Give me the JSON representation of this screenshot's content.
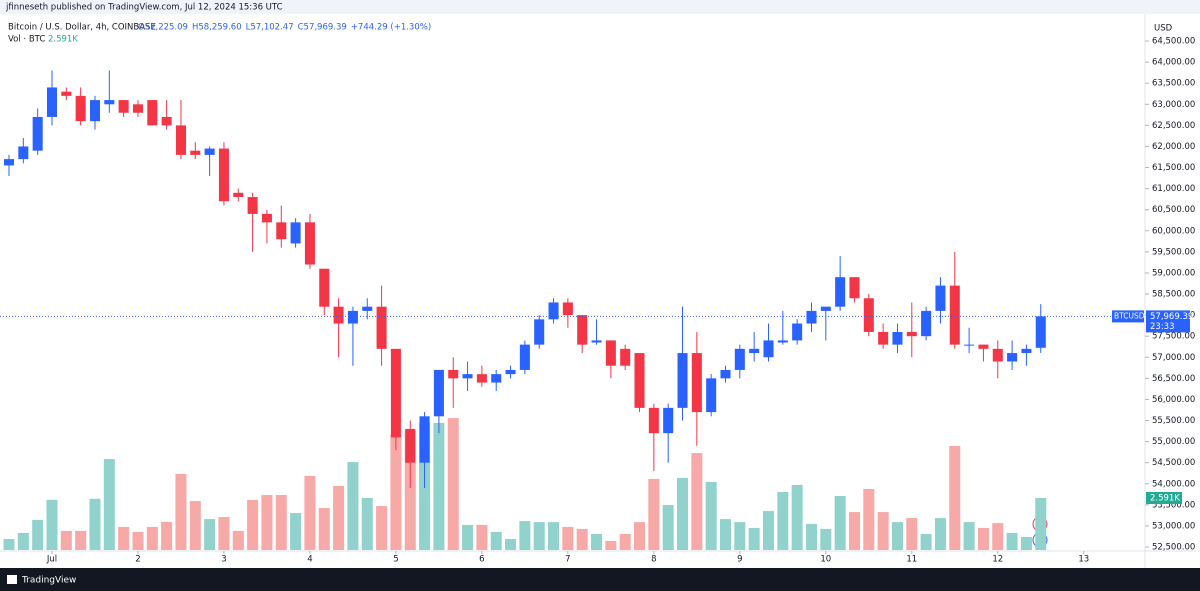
{
  "chart_data": {
    "type": "candlestick",
    "credit": "jfinneseth published on TradingView.com, Jul 12, 2024 15:36 UTC",
    "title": "Bitcoin / U.S. Dollar, 4h, COINBASE",
    "ohlc_header": [
      "O57,225.09",
      "H58,259.60",
      "L57,102.47",
      "C57,969.39",
      "+744.29 (+1.30%)"
    ],
    "volume_title": "Vol · BTC",
    "volume_header": "2.591K",
    "currency": "USD",
    "symbol": "BTCUSD",
    "last_price_label": "57,969.39",
    "countdown": "23:33",
    "volume_tag": "2.591K",
    "footer": "TradingView",
    "up_color": "#2962ff",
    "down_color": "#f23645",
    "volume_up_color": "#92d2cc",
    "volume_down_color": "#f7a9a7",
    "categories": [
      null,
      null,
      null,
      null,
      null,
      null,
      null,
      null,
      null,
      null,
      null,
      null,
      null,
      null,
      null,
      null,
      null,
      null,
      null,
      null,
      null,
      null,
      null,
      null,
      null,
      null,
      null,
      null,
      null,
      null,
      null,
      null,
      null,
      null,
      null,
      null,
      null,
      null,
      null,
      null,
      null,
      null,
      null,
      null,
      null,
      null,
      null,
      null,
      null,
      null,
      null,
      null,
      null,
      null,
      null,
      null,
      null,
      null,
      null,
      null,
      null,
      null,
      null,
      null,
      null,
      null,
      null,
      null,
      null,
      null,
      null,
      null,
      null
    ],
    "open": [
      61550,
      61700,
      61900,
      62700,
      63300,
      63200,
      62600,
      63000,
      63100,
      63000,
      63100,
      62700,
      62500,
      61900,
      61800,
      61950,
      60900,
      60800,
      60400,
      60200,
      59700,
      60200,
      59100,
      58200,
      57800,
      58100,
      58200,
      57200,
      55300,
      54500,
      55600,
      56700,
      56500,
      56600,
      56400,
      56600,
      56700,
      57300,
      57900,
      58300,
      58000,
      57350,
      57400,
      57200,
      57100,
      55800,
      55200,
      55800,
      57100,
      55700,
      56500,
      56700,
      57100,
      57000,
      57350,
      57400,
      57800,
      58100,
      58200,
      58900,
      58400,
      57600,
      57300,
      57600,
      57500,
      58100,
      58700,
      57300,
      57300,
      57200,
      56900,
      57100,
      57225.09
    ],
    "high": [
      61800,
      62200,
      62900,
      63800,
      63400,
      63400,
      63200,
      63800,
      63100,
      63100,
      63100,
      63100,
      63100,
      62100,
      62000,
      62100,
      61000,
      60900,
      60500,
      60600,
      60300,
      60400,
      59100,
      58400,
      58200,
      58400,
      58700,
      57200,
      55500,
      55700,
      56700,
      57000,
      56900,
      56800,
      56700,
      56800,
      57400,
      58000,
      58400,
      58400,
      58000,
      57900,
      57400,
      57300,
      57100,
      55900,
      55900,
      58200,
      57600,
      56600,
      56800,
      57300,
      57600,
      57800,
      58100,
      57900,
      58300,
      58200,
      59400,
      58900,
      58500,
      57800,
      57800,
      58300,
      58200,
      58900,
      59500,
      57700,
      57300,
      57400,
      57400,
      57300,
      58259.6
    ],
    "low": [
      61300,
      61600,
      61800,
      62500,
      63100,
      62500,
      62400,
      62800,
      62700,
      62700,
      62500,
      62400,
      61700,
      61700,
      61300,
      60600,
      60700,
      59500,
      59700,
      59600,
      59600,
      59100,
      58000,
      57000,
      56800,
      57900,
      56800,
      54800,
      53900,
      53900,
      55200,
      55800,
      56200,
      56300,
      56200,
      56500,
      56600,
      57200,
      57800,
      57700,
      57100,
      57300,
      56500,
      56700,
      55700,
      54300,
      54500,
      55500,
      54900,
      55600,
      56400,
      56500,
      56900,
      56900,
      57300,
      57300,
      57600,
      57400,
      58100,
      58300,
      57500,
      57200,
      57100,
      57000,
      57400,
      57800,
      57200,
      57100,
      56900,
      56500,
      56700,
      56800,
      57102.47
    ],
    "close": [
      61700,
      62000,
      62700,
      63400,
      63200,
      62600,
      63100,
      63100,
      62800,
      62800,
      62500,
      62500,
      61800,
      61800,
      61950,
      60700,
      60800,
      60400,
      60200,
      59800,
      60200,
      59200,
      58200,
      57800,
      58100,
      58200,
      57200,
      55100,
      54500,
      55600,
      56700,
      56500,
      56600,
      56400,
      56600,
      56700,
      57300,
      57900,
      58300,
      58000,
      57300,
      57400,
      56800,
      56800,
      55800,
      55200,
      55800,
      57100,
      55700,
      56500,
      56700,
      57200,
      57200,
      57400,
      57400,
      57800,
      58100,
      58200,
      58900,
      58400,
      57600,
      57300,
      57600,
      57500,
      58100,
      58700,
      57300,
      57300,
      57200,
      56900,
      57100,
      57200,
      57969.39
    ],
    "volume": [
      550,
      850,
      1500,
      2500,
      950,
      950,
      2550,
      4530,
      1150,
      900,
      1150,
      1400,
      3790,
      2440,
      1540,
      1640,
      950,
      2490,
      2740,
      2740,
      1840,
      3690,
      2090,
      3190,
      4380,
      2590,
      2190,
      5730,
      5930,
      6330,
      6330,
      6570,
      1250,
      1250,
      900,
      550,
      1440,
      1390,
      1390,
      1150,
      1050,
      800,
      450,
      800,
      1390,
      3540,
      2240,
      3590,
      4830,
      3390,
      1540,
      1390,
      1100,
      1940,
      2890,
      3240,
      1300,
      1050,
      2690,
      1890,
      3040,
      1890,
      1390,
      1590,
      800,
      1590,
      5180,
      1390,
      1100,
      1340,
      850,
      650,
      2591
    ],
    "ylim": [
      52429,
      64952
    ],
    "volume_lim": [
      0,
      26300
    ],
    "yticks": [
      {
        "value": 52500,
        "label": "52,500.00"
      },
      {
        "value": 53000,
        "label": "53,000.00"
      },
      {
        "value": 53500,
        "label": "53,500.00"
      },
      {
        "value": 54000,
        "label": "54,000.00"
      },
      {
        "value": 54500,
        "label": "54,500.00"
      },
      {
        "value": 55000,
        "label": "55,000.00"
      },
      {
        "value": 55500,
        "label": "55,500.00"
      },
      {
        "value": 56000,
        "label": "56,000.00"
      },
      {
        "value": 56500,
        "label": "56,500.00"
      },
      {
        "value": 57000,
        "label": "57,000.00"
      },
      {
        "value": 57500,
        "label": "57,500.00"
      },
      {
        "value": 58000,
        "label": "58,000.00"
      },
      {
        "value": 58500,
        "label": "58,500.00"
      },
      {
        "value": 59000,
        "label": "59,000.00"
      },
      {
        "value": 59500,
        "label": "59,500.00"
      },
      {
        "value": 60000,
        "label": "60,000.00"
      },
      {
        "value": 60500,
        "label": "60,500.00"
      },
      {
        "value": 61000,
        "label": "61,000.00"
      },
      {
        "value": 61500,
        "label": "61,500.00"
      },
      {
        "value": 62000,
        "label": "62,000.00"
      },
      {
        "value": 62500,
        "label": "62,500.00"
      },
      {
        "value": 63000,
        "label": "63,000.00"
      },
      {
        "value": 63500,
        "label": "63,500.00"
      },
      {
        "value": 64000,
        "label": "64,000.00"
      },
      {
        "value": 64500,
        "label": "64,500.00"
      }
    ],
    "xticks": [
      {
        "value": 3,
        "label": "Jul"
      },
      {
        "value": 9,
        "label": "2"
      },
      {
        "value": 15,
        "label": "3"
      },
      {
        "value": 21,
        "label": "4"
      },
      {
        "value": 27,
        "label": "5"
      },
      {
        "value": 33,
        "label": "6"
      },
      {
        "value": 39,
        "label": "7"
      },
      {
        "value": 45,
        "label": "8"
      },
      {
        "value": 51,
        "label": "9"
      },
      {
        "value": 57,
        "label": "10"
      },
      {
        "value": 63,
        "label": "11"
      },
      {
        "value": 69,
        "label": "12"
      },
      {
        "value": 75,
        "label": "13"
      }
    ]
  }
}
